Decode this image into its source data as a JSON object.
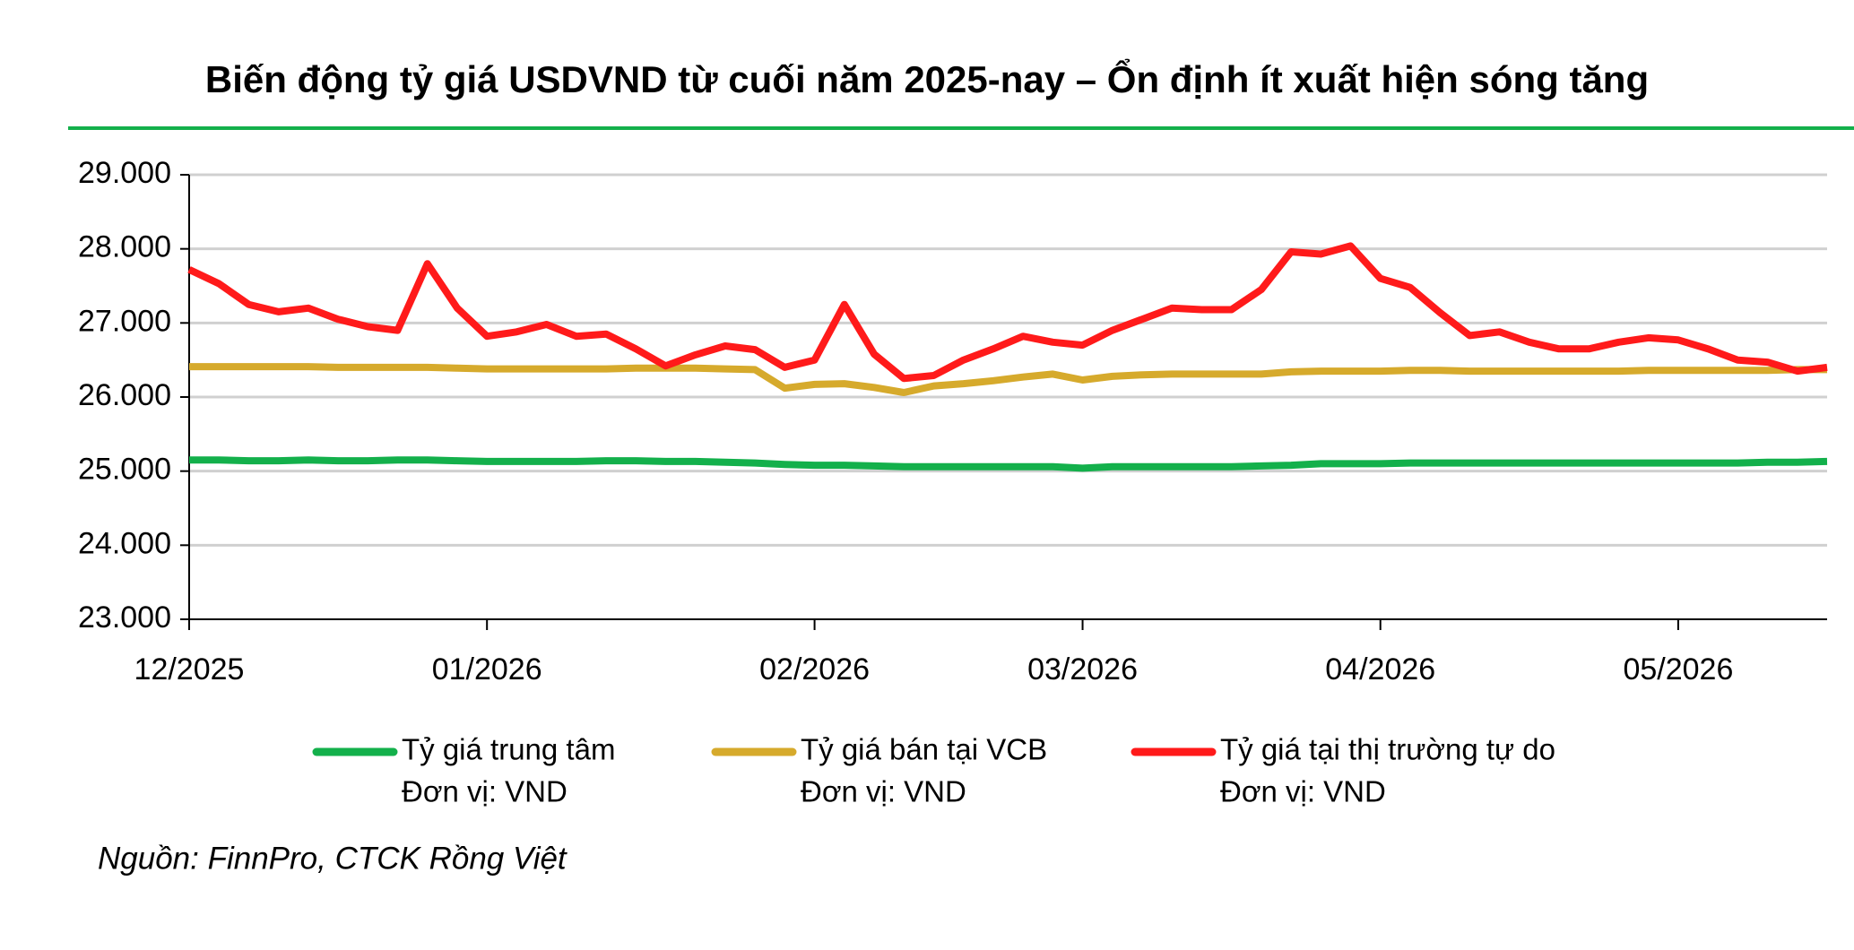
{
  "chart_data": {
    "type": "line",
    "title": "Biến động tỷ giá USDVND từ cuối năm 2025-nay – Ổn định ít xuất hiện sóng tăng",
    "source": "Nguồn: FinnPro, CTCK Rồng Việt",
    "categories": [
      "12/2025",
      null,
      null,
      null,
      null,
      null,
      null,
      null,
      null,
      null,
      "01/2026",
      null,
      null,
      null,
      null,
      null,
      null,
      null,
      null,
      null,
      null,
      "02/2026",
      null,
      null,
      null,
      null,
      null,
      null,
      null,
      null,
      "03/2026",
      null,
      null,
      null,
      null,
      null,
      null,
      null,
      null,
      null,
      "04/2026",
      null,
      null,
      null,
      null,
      null,
      null,
      null,
      null,
      null,
      "05/2026",
      null,
      null,
      null,
      null,
      null
    ],
    "series": [
      {
        "name": "Tỷ giá trung tâm",
        "unit": "Đơn vị: VND",
        "color": "#13b04b",
        "values": [
          25150,
          25150,
          25140,
          25140,
          25150,
          25140,
          25140,
          25150,
          25150,
          25140,
          25130,
          25130,
          25130,
          25130,
          25140,
          25140,
          25130,
          25130,
          25120,
          25110,
          25090,
          25080,
          25080,
          25070,
          25060,
          25060,
          25060,
          25060,
          25060,
          25060,
          25040,
          25060,
          25060,
          25060,
          25060,
          25060,
          25070,
          25080,
          25100,
          25100,
          25100,
          25110,
          25110,
          25110,
          25110,
          25110,
          25110,
          25110,
          25110,
          25110,
          25110,
          25110,
          25110,
          25120,
          25120,
          25130
        ]
      },
      {
        "name": "Tỷ giá bán tại VCB",
        "unit": "Đơn vị: VND",
        "color": "#d6aa2c",
        "values": [
          26410,
          26410,
          26410,
          26410,
          26410,
          26400,
          26400,
          26400,
          26400,
          26390,
          26380,
          26380,
          26380,
          26380,
          26380,
          26390,
          26390,
          26390,
          26380,
          26370,
          26120,
          26170,
          26180,
          26130,
          26060,
          26150,
          26180,
          26220,
          26270,
          26310,
          26230,
          26280,
          26300,
          26310,
          26310,
          26310,
          26310,
          26340,
          26350,
          26350,
          26350,
          26360,
          26360,
          26350,
          26350,
          26350,
          26350,
          26350,
          26350,
          26360,
          26360,
          26360,
          26360,
          26360,
          26370,
          26370
        ]
      },
      {
        "name": "Tỷ giá tại thị trường tự do",
        "unit": "Đơn vị: VND",
        "color": "#ff1a1a",
        "values": [
          27720,
          27530,
          27250,
          27150,
          27200,
          27050,
          26950,
          26900,
          27800,
          27200,
          26820,
          26880,
          26980,
          26820,
          26850,
          26650,
          26420,
          26570,
          26690,
          26640,
          26400,
          26500,
          27250,
          26580,
          26250,
          26290,
          26500,
          26650,
          26820,
          26740,
          26700,
          26900,
          27050,
          27200,
          27180,
          27180,
          27450,
          27960,
          27930,
          28040,
          27600,
          27480,
          27140,
          26830,
          26880,
          26740,
          26650,
          26650,
          26740,
          26800,
          26770,
          26650,
          26500,
          26470,
          26350,
          26400
        ]
      }
    ],
    "ylim": [
      23000,
      29000
    ],
    "yticks": [
      {
        "value": 23000,
        "label": "23.000"
      },
      {
        "value": 24000,
        "label": "24.000"
      },
      {
        "value": 25000,
        "label": "25.000"
      },
      {
        "value": 26000,
        "label": "26.000"
      },
      {
        "value": 27000,
        "label": "27.000"
      },
      {
        "value": 28000,
        "label": "28.000"
      },
      {
        "value": 29000,
        "label": "29.000"
      }
    ],
    "grid": true
  }
}
